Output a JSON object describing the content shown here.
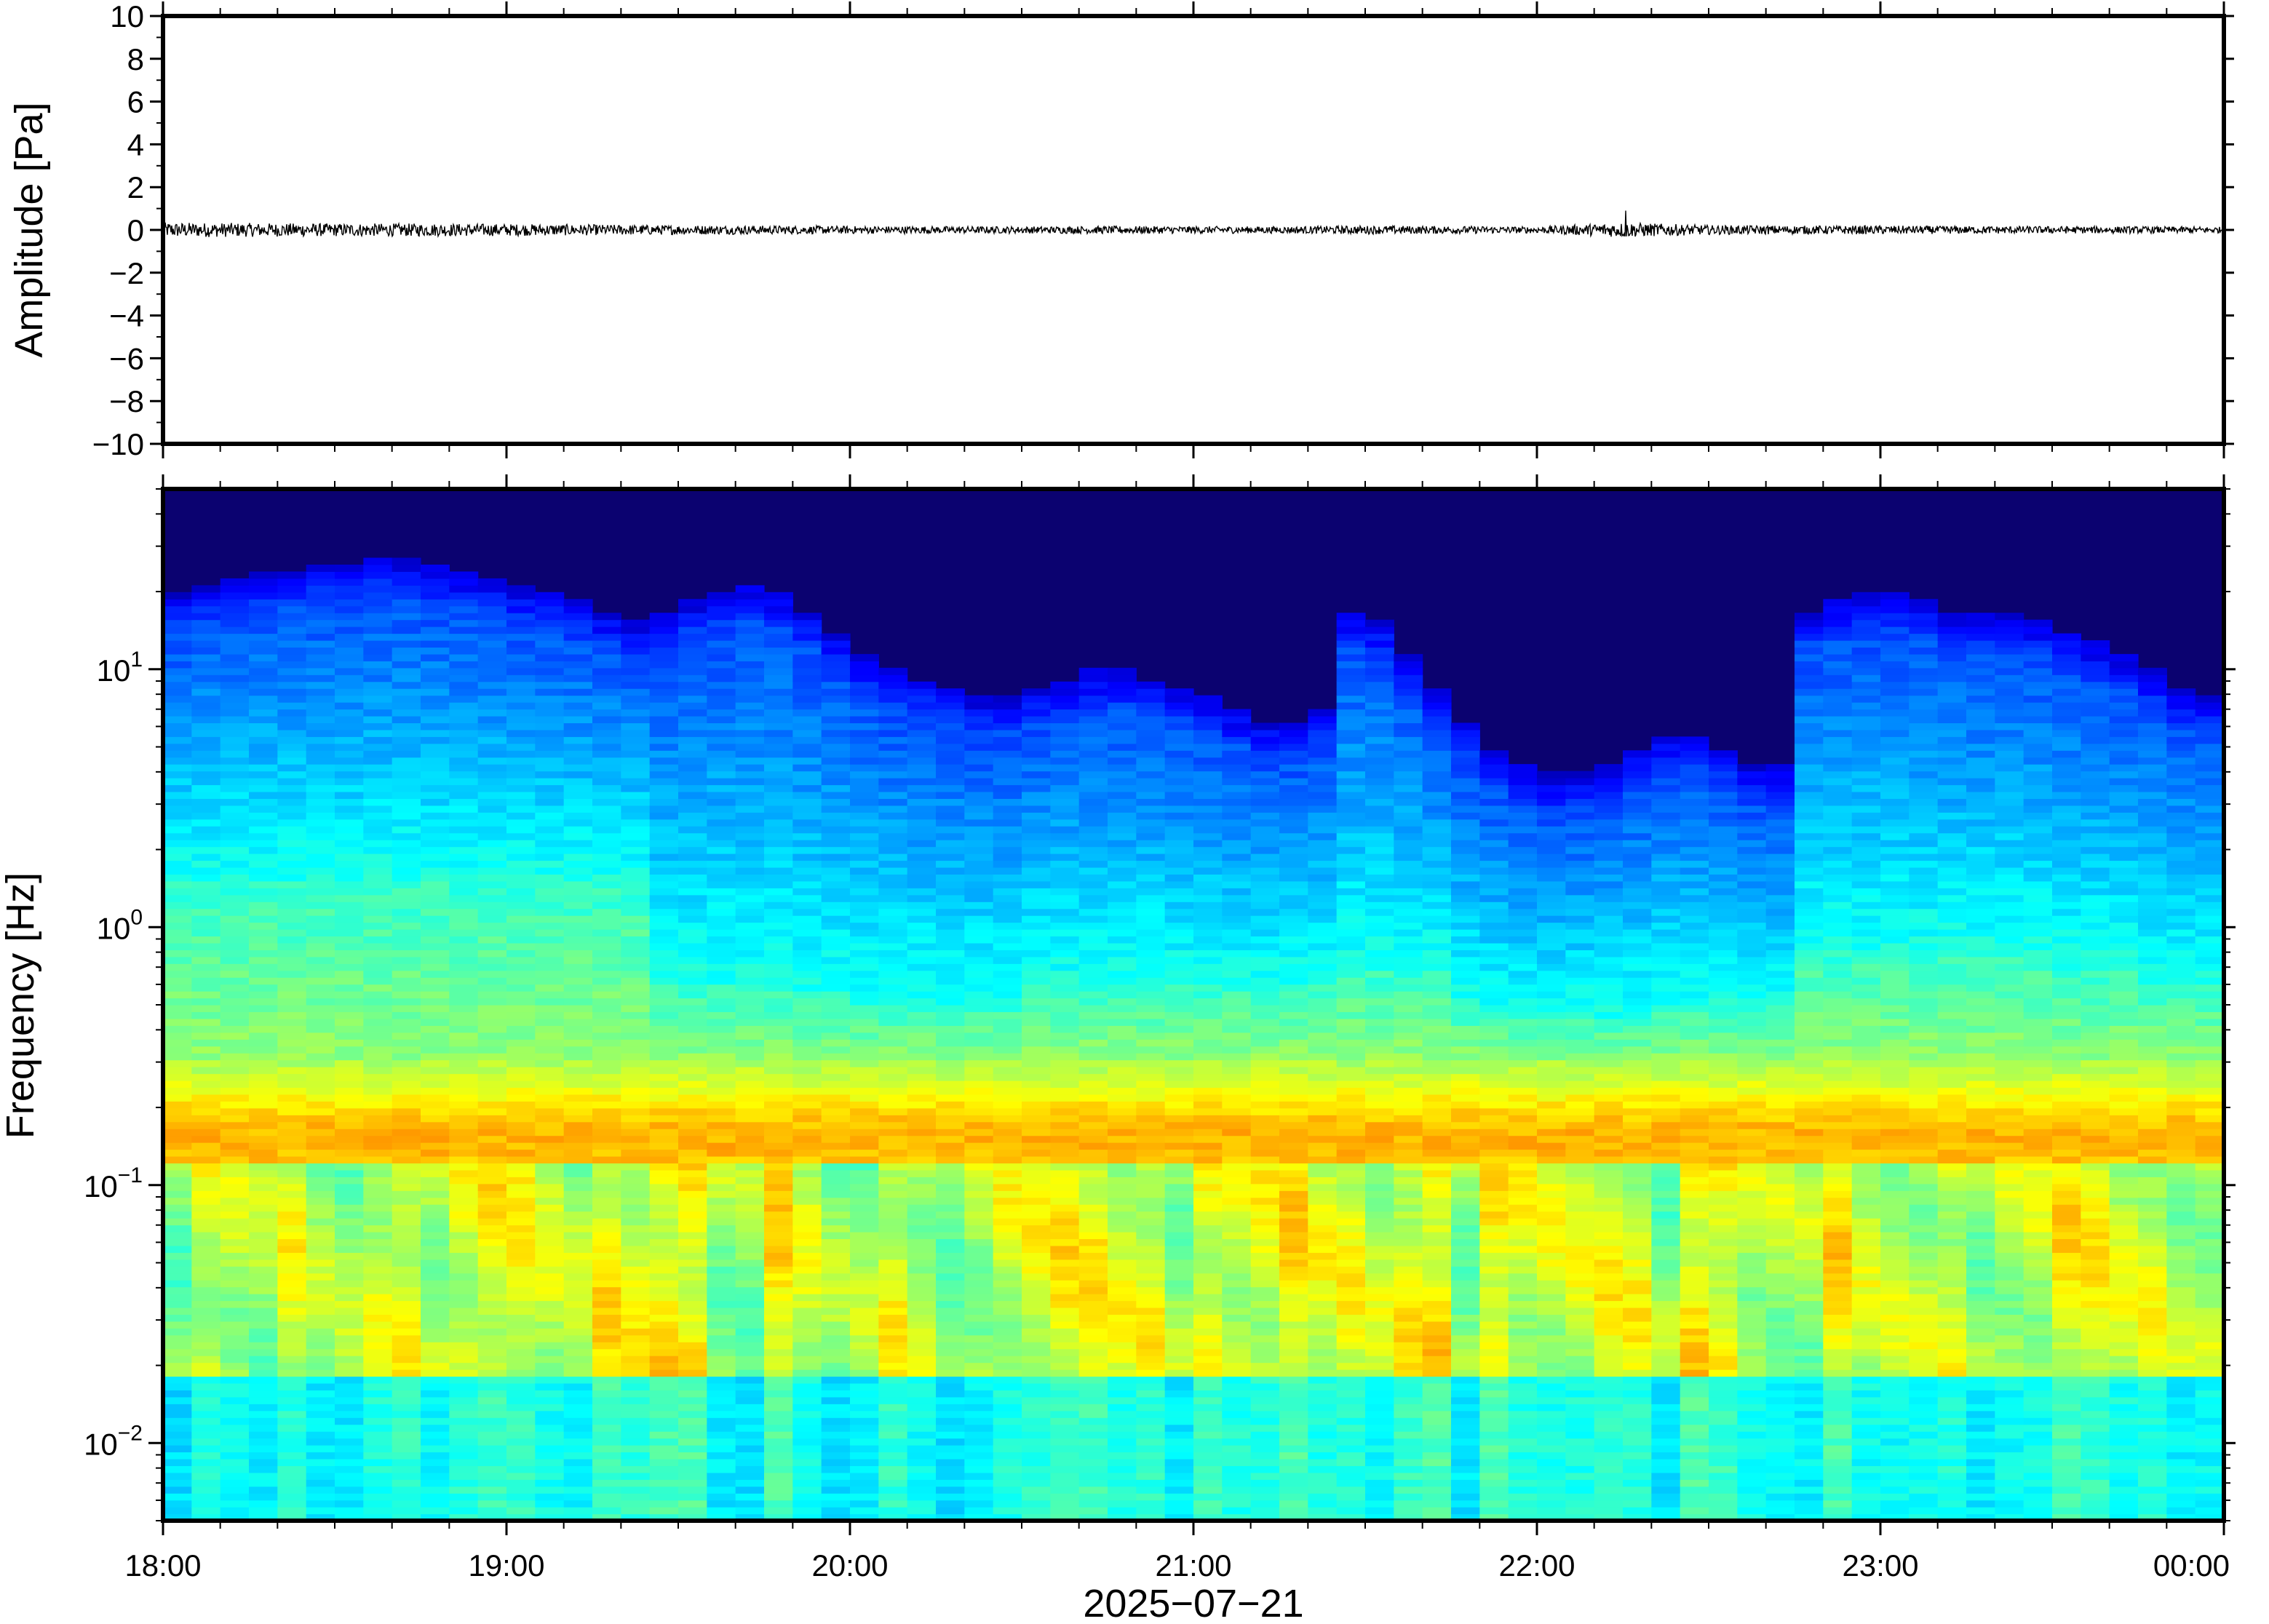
{
  "chart_data": [
    {
      "type": "line",
      "panel": "waveform",
      "ylabel": "Amplitude [Pa]",
      "ylim": [
        -10,
        10
      ],
      "yticks": [
        10,
        8,
        6,
        4,
        2,
        0,
        -2,
        -4,
        -6,
        -8,
        -10
      ],
      "ytick_labels": [
        "10",
        "8",
        "6",
        "4",
        "2",
        "0",
        "−2",
        "−4",
        "−6",
        "−8",
        "−10"
      ],
      "x_range": [
        "18:00",
        "00:00"
      ],
      "grid": false,
      "series": [
        {
          "color": "#000000",
          "x": [
            "18:00",
            "18:15",
            "18:30",
            "18:45",
            "19:00",
            "19:15",
            "19:30",
            "19:45",
            "20:00",
            "20:15",
            "20:30",
            "20:45",
            "21:00",
            "21:15",
            "21:30",
            "21:45",
            "22:00",
            "22:15",
            "22:30",
            "22:45",
            "23:00",
            "23:15",
            "23:30",
            "23:45",
            "00:00"
          ],
          "envelope": [
            0.35,
            0.32,
            0.3,
            0.3,
            0.28,
            0.25,
            0.22,
            0.2,
            0.18,
            0.17,
            0.16,
            0.18,
            0.17,
            0.16,
            0.2,
            0.18,
            0.15,
            0.35,
            0.22,
            0.2,
            0.2,
            0.18,
            0.17,
            0.16,
            0.15
          ]
        }
      ]
    },
    {
      "type": "heatmap",
      "panel": "spectrogram",
      "ylabel": "Frequency [Hz]",
      "xlabel": "2025−07−21",
      "yscale": "log",
      "ylim": [
        0.005,
        50
      ],
      "yticks": [
        {
          "base": "10",
          "exp": "1",
          "value": 10
        },
        {
          "base": "10",
          "exp": "0",
          "value": 1
        },
        {
          "base": "10",
          "exp": "−1",
          "value": 0.1
        },
        {
          "base": "10",
          "exp": "−2",
          "value": 0.01
        }
      ],
      "xticks": [
        "18:00",
        "19:00",
        "20:00",
        "21:00",
        "22:00",
        "23:00",
        "00:00"
      ],
      "colormap": "jet",
      "colors": {
        "low": "#0b0270",
        "mid": "#7fffb0",
        "high": "#ff8a3d"
      },
      "time_columns": 72,
      "upper_edge_hz": [
        14,
        15,
        16,
        17,
        17,
        18,
        18,
        19,
        19,
        18,
        17,
        16,
        15,
        14,
        13,
        12,
        11,
        12,
        13,
        14,
        15,
        14,
        12,
        10,
        8,
        7,
        6.5,
        6,
        5.5,
        5.5,
        6,
        6.5,
        7,
        7,
        6.5,
        6,
        5.5,
        5,
        4.5,
        4.5,
        5,
        12,
        11,
        8,
        6,
        4.5,
        3.5,
        3,
        2.8,
        2.8,
        3,
        3.5,
        4,
        4,
        3.5,
        3,
        3,
        12,
        13,
        14,
        14,
        13,
        12,
        12,
        12,
        11,
        10,
        9,
        8,
        7,
        6,
        5.5
      ],
      "blue_floor_hz": [
        1.5,
        1.5,
        1.5,
        1.5,
        1.5,
        1.5,
        1.5,
        1.5,
        1.5,
        1.5,
        1.5,
        1.5,
        1.5,
        1.5,
        1.5,
        1.5,
        1.5,
        0.6,
        0.6,
        0.6,
        0.6,
        0.6,
        0.55,
        0.55,
        0.5,
        0.5,
        0.5,
        0.5,
        0.5,
        0.5,
        0.6,
        0.6,
        0.6,
        0.6,
        0.6,
        0.6,
        0.6,
        0.6,
        0.6,
        0.6,
        0.6,
        0.7,
        0.7,
        0.7,
        0.7,
        0.5,
        0.45,
        0.45,
        0.45,
        0.45,
        0.45,
        0.45,
        0.5,
        0.5,
        0.5,
        0.5,
        0.5,
        0.8,
        0.8,
        0.8,
        0.8,
        0.8,
        0.8,
        0.8,
        0.8,
        0.8,
        0.7,
        0.7,
        0.7,
        0.6,
        0.6,
        0.6
      ]
    }
  ]
}
